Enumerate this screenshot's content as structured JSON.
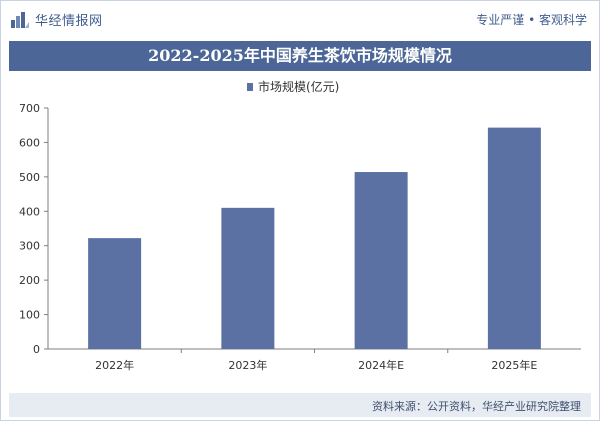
{
  "header": {
    "logo_text": "华经情报网",
    "slogan": "专业严谨 • 客观科学"
  },
  "title": "2022-2025年中国养生茶饮市场规模情况",
  "source": "资料来源：公开资料，华经产业研究院整理",
  "colors": {
    "bar": "#5b71a3",
    "title_bg": "#4c6797",
    "axis": "#7f7f7f",
    "footer_bg": "#e7ecf3"
  },
  "chart_data": {
    "type": "bar",
    "categories": [
      "2022年",
      "2023年",
      "2024年E",
      "2025年E"
    ],
    "series": [
      {
        "name": "市场规模(亿元)",
        "values": [
          322,
          410,
          514,
          643
        ]
      }
    ],
    "ylim": [
      0,
      700
    ],
    "yticks": [
      0,
      100,
      200,
      300,
      400,
      500,
      600,
      700
    ],
    "legend_position": "top-center",
    "grid": false
  }
}
